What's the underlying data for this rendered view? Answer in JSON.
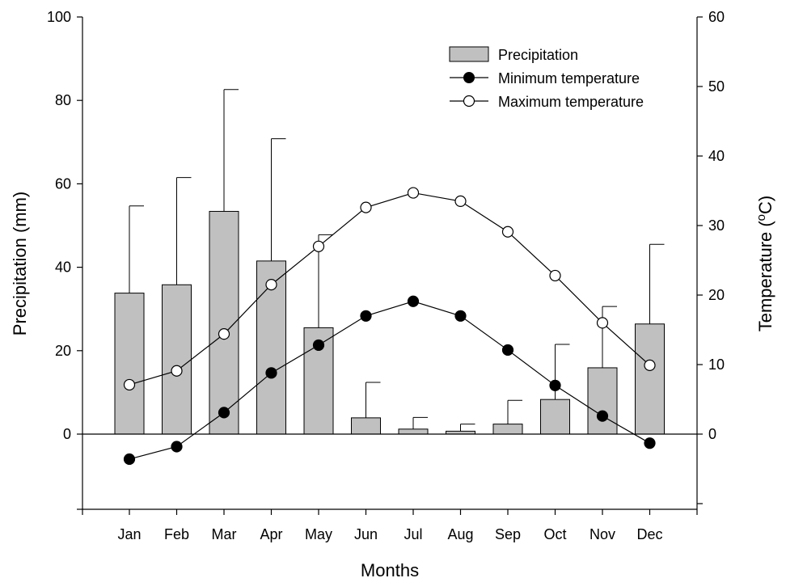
{
  "chart_data": {
    "type": "bar+line",
    "xlabel": "Months",
    "ylabel_left": "Precipitation (mm)",
    "ylabel_right_main": "Temperature (",
    "ylabel_right_sup": "o",
    "ylabel_right_tail": "C)",
    "categories": [
      "Jan",
      "Feb",
      "Mar",
      "Apr",
      "May",
      "Jun",
      "Jul",
      "Aug",
      "Sep",
      "Oct",
      "Nov",
      "Dec"
    ],
    "ylim_left": [
      -18,
      100
    ],
    "yticks_left": [
      0,
      20,
      40,
      60,
      80,
      100
    ],
    "ylim_right": [
      -10.8,
      60
    ],
    "yticks_right": [
      0,
      10,
      20,
      30,
      40,
      50,
      60
    ],
    "legend": {
      "position": "top-right",
      "precipitation": "Precipitation",
      "min_temp": "Minimum temperature",
      "max_temp": "Maximum temperature"
    },
    "series": [
      {
        "name": "Precipitation",
        "kind": "bar",
        "axis": "left",
        "color": "#c0c0c0",
        "values": [
          33.8,
          35.8,
          53.4,
          41.5,
          25.5,
          3.9,
          1.2,
          0.7,
          2.4,
          8.3,
          15.9,
          26.4
        ],
        "error_upper": [
          54.7,
          61.5,
          82.6,
          70.8,
          47.8,
          12.4,
          4.0,
          2.4,
          8.1,
          21.5,
          30.6,
          45.5
        ]
      },
      {
        "name": "Minimum temperature",
        "kind": "line",
        "axis": "right",
        "marker": "filled-circle",
        "color": "#000000",
        "values": [
          -3.6,
          -1.8,
          3.1,
          8.8,
          12.8,
          17.0,
          19.1,
          17.0,
          12.1,
          7.0,
          2.6,
          -1.3
        ]
      },
      {
        "name": "Maximum temperature",
        "kind": "line",
        "axis": "right",
        "marker": "open-circle",
        "color": "#000000",
        "values": [
          7.1,
          9.1,
          14.4,
          21.5,
          27.0,
          32.6,
          34.7,
          33.5,
          29.1,
          22.8,
          16.0,
          9.9
        ]
      }
    ]
  }
}
